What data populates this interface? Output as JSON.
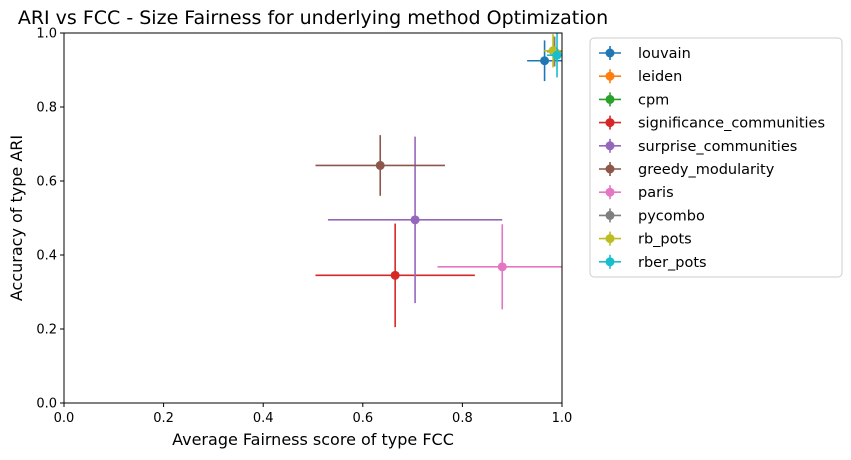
{
  "chart_data": {
    "type": "scatter",
    "title": "ARI vs FCC - Size Fairness for underlying method Optimization",
    "xlabel": "Average Fairness score of type FCC",
    "ylabel": "Accuracy of type ARI",
    "xlim": [
      0.0,
      1.0
    ],
    "ylim": [
      0.0,
      1.0
    ],
    "xticks": [
      "0.0",
      "0.2",
      "0.4",
      "0.6",
      "0.8",
      "1.0"
    ],
    "yticks": [
      "0.0",
      "0.2",
      "0.4",
      "0.6",
      "0.8",
      "1.0"
    ],
    "grid": false,
    "legend_position": "outside-right",
    "series": [
      {
        "name": "louvain",
        "color": "#1f77b4",
        "x": 0.965,
        "y": 0.925,
        "xerr": 0.035,
        "yerr": 0.055
      },
      {
        "name": "leiden",
        "color": "#ff7f0e",
        "x": 0.985,
        "y": 0.95,
        "xerr": 0.015,
        "yerr": 0.04
      },
      {
        "name": "cpm",
        "color": "#2ca02c",
        "x": 0.985,
        "y": 0.95,
        "xerr": 0.015,
        "yerr": 0.04
      },
      {
        "name": "significance_communities",
        "color": "#d62728",
        "x": 0.665,
        "y": 0.345,
        "xerr": 0.16,
        "yerr": 0.14
      },
      {
        "name": "surprise_communities",
        "color": "#9467bd",
        "x": 0.705,
        "y": 0.495,
        "xerr": 0.175,
        "yerr": 0.225
      },
      {
        "name": "greedy_modularity",
        "color": "#8c564b",
        "x": 0.635,
        "y": 0.642,
        "xerr": 0.13,
        "yerr": 0.082
      },
      {
        "name": "paris",
        "color": "#e377c2",
        "x": 0.88,
        "y": 0.368,
        "xerr": 0.13,
        "yerr": 0.115
      },
      {
        "name": "pycombo",
        "color": "#7f7f7f",
        "x": 0.985,
        "y": 0.95,
        "xerr": 0.015,
        "yerr": 0.04
      },
      {
        "name": "rb_pots",
        "color": "#bcbd22",
        "x": 0.982,
        "y": 0.952,
        "xerr": 0.018,
        "yerr": 0.045
      },
      {
        "name": "rber_pots",
        "color": "#17becf",
        "x": 0.99,
        "y": 0.94,
        "xerr": 0.02,
        "yerr": 0.06
      }
    ]
  }
}
